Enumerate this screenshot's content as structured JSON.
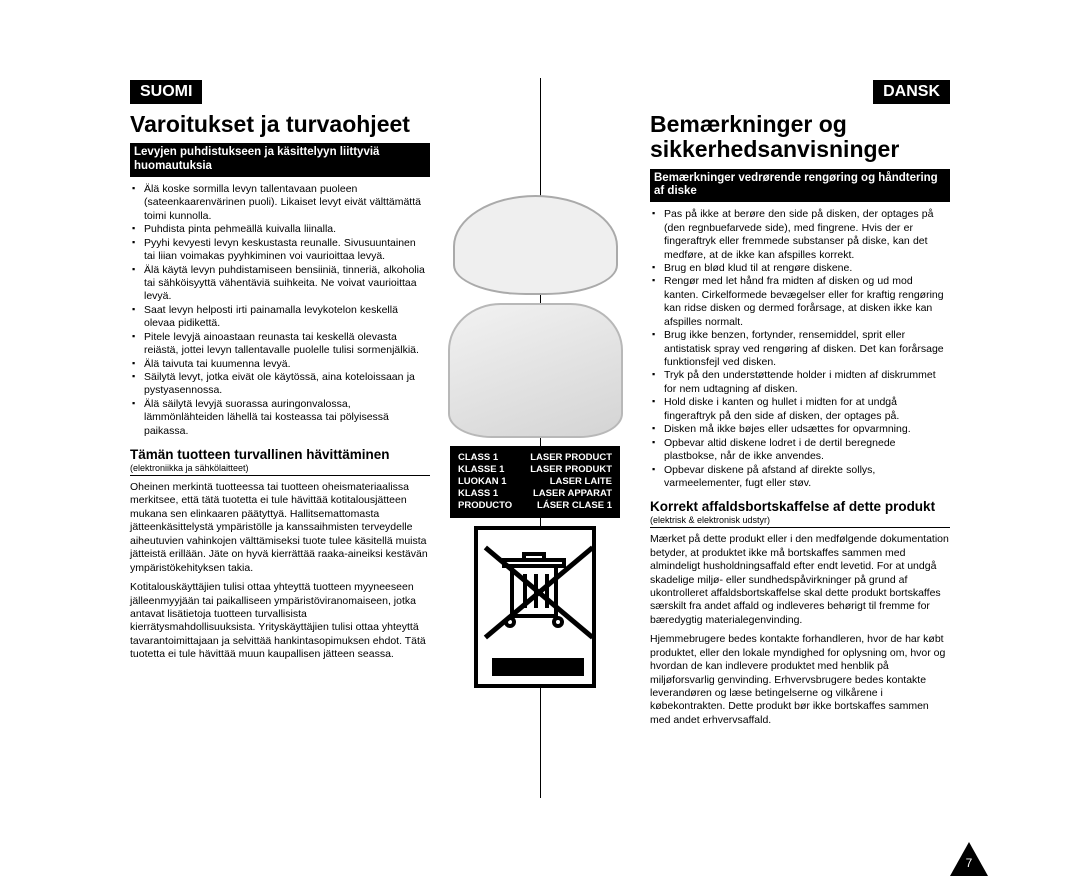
{
  "page_number": "7",
  "left": {
    "lang": "SUOMI",
    "title": "Varoitukset ja turvaohjeet",
    "banner": "Levyjen puhdistukseen ja käsittelyyn liittyviä huomautuksia",
    "notes": [
      "Älä koske sormilla levyn tallentavaan puoleen (sateenkaarenvärinen puoli). Likaiset levyt eivät välttämättä toimi kunnolla.",
      "Puhdista pinta pehmeällä kuivalla liinalla.",
      "Pyyhi kevyesti levyn keskustasta reunalle. Sivusuuntainen tai liian voimakas pyyhkiminen voi vaurioittaa levyä.",
      "Älä käytä levyn puhdistamiseen bensiiniä, tinneriä, alkoholia tai sähköisyyttä vähentäviä suihkeita. Ne voivat vaurioittaa levyä.",
      "Saat levyn helposti irti painamalla levykotelon keskellä olevaa pidikettä.",
      "Pitele levyjä ainoastaan reunasta tai keskellä olevasta reiästä, jottei levyn tallentavalle puolelle tulisi sormenjälkiä.",
      "Älä taivuta tai kuumenna levyä.",
      "Säilytä levyt, jotka eivät ole käytössä, aina koteloissaan ja pystyasennossa.",
      "Älä säilytä levyjä suorassa auringonvalossa, lämmönlähteiden lähellä tai kosteassa tai pölyisessä paikassa."
    ],
    "disposal_heading": "Tämän tuotteen turvallinen hävittäminen",
    "disposal_sub": "(elektroniikka ja sähkölaitteet)",
    "disposal_p1": "Oheinen merkintä tuotteessa tai tuotteen oheismateriaalissa merkitsee, että tätä tuotetta ei tule hävittää kotitalousjätteen mukana sen elinkaaren päätyttyä. Hallitsemattomasta jätteenkäsittelystä ympäristölle ja kanssaihmisten terveydelle aiheutuvien vahinkojen välttämiseksi tuote tulee käsitellä muista jätteistä erillään. Jäte on hyvä kierrättää raaka-aineiksi kestävän ympäristökehityksen takia.",
    "disposal_p2": "Kotitalouskäyttäjien tulisi ottaa yhteyttä tuotteen myyneeseen jälleenmyyjään tai paikalliseen ympäristöviranomaiseen, jotka antavat lisätietoja tuotteen turvallisista kierrätysmahdollisuuksista. Yrityskäyttäjien tulisi ottaa yhteyttä tavarantoimittajaan ja selvittää hankintasopimuksen ehdot. Tätä tuotetta ei tule hävittää muun kaupallisen jätteen seassa."
  },
  "right": {
    "lang": "DANSK",
    "title": "Bemærkninger og sikkerhedsanvisninger",
    "banner": "Bemærkninger vedrørende rengøring og håndtering af diske",
    "notes": [
      "Pas på ikke at berøre den side på disken, der optages på (den regnbuefarvede side), med fingrene. Hvis der er fingeraftryk eller fremmede substanser på diske, kan det medføre, at de ikke kan afspilles korrekt.",
      "Brug en blød klud til at rengøre diskene.",
      "Rengør med let hånd fra midten af disken og ud mod kanten. Cirkelformede bevægelser eller for kraftig rengøring kan ridse disken og dermed forårsage, at disken ikke kan afspilles normalt.",
      "Brug ikke benzen, fortynder, rensemiddel, sprit eller antistatisk spray ved rengøring af disken. Det kan forårsage funktionsfejl ved disken.",
      "Tryk på den understøttende holder i midten af diskrummet for nem udtagning af disken.",
      "Hold diske i kanten og hullet i midten for at undgå fingeraftryk på den side af disken, der optages på.",
      "Disken må ikke bøjes eller udsættes for opvarmning.",
      "Opbevar altid diskene lodret i de dertil beregnede plastbokse, når de ikke anvendes.",
      "Opbevar diskene på afstand af direkte sollys, varmeelementer, fugt eller støv."
    ],
    "disposal_heading": "Korrekt affaldsbortskaffelse af dette produkt",
    "disposal_sub": "(elektrisk & elektronisk udstyr)",
    "disposal_p1": "Mærket på dette produkt eller i den medfølgende dokumentation betyder, at produktet ikke må bortskaffes sammen med almindeligt husholdningsaffald efter endt levetid. For at undgå skadelige miljø- eller sundhedspåvirkninger på grund af ukontrolleret affaldsbortskaffelse skal dette produkt bortskaffes særskilt fra andet affald og indleveres behørigt til fremme for bæredygtig materialegenvinding.",
    "disposal_p2": "Hjemmebrugere bedes kontakte forhandleren, hvor de har købt produktet, eller den lokale myndighed for oplysning om, hvor og hvordan de kan indlevere produktet med henblik på miljøforsvarlig genvinding. Erhvervsbrugere bedes kontakte leverandøren og læse betingelserne og vilkårene i købekontrakten. Dette produkt bør ikke bortskaffes sammen med andet erhvervsaffald."
  },
  "laser": {
    "rows": [
      [
        "CLASS 1",
        "LASER PRODUCT"
      ],
      [
        "KLASSE 1",
        "LASER PRODUKT"
      ],
      [
        "LUOKAN 1",
        "LASER LAITE"
      ],
      [
        "KLASS 1",
        "LASER APPARAT"
      ],
      [
        "PRODUCTO",
        "LÁSER CLASE 1"
      ]
    ]
  }
}
